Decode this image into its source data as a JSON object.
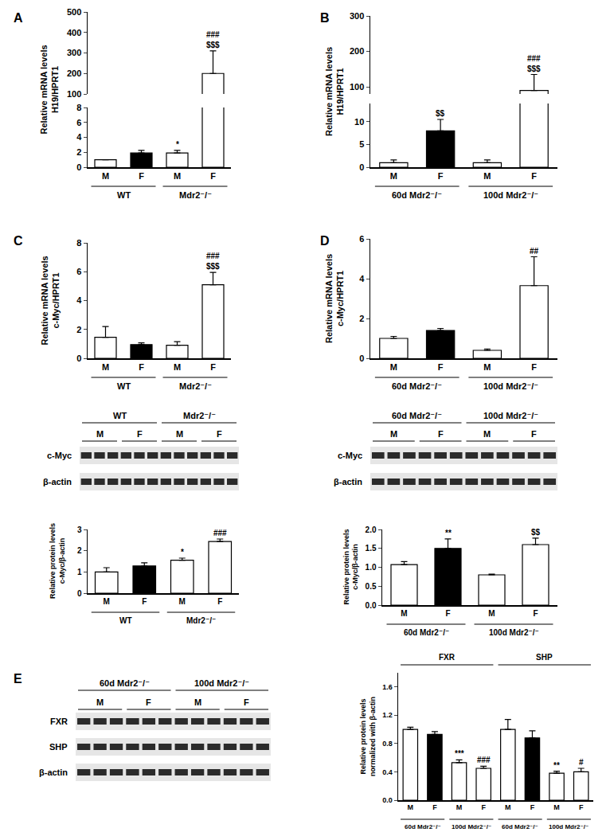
{
  "panel_labels": [
    "A",
    "B",
    "C",
    "D",
    "E"
  ],
  "chart_data": [
    {
      "type": "bar",
      "ylabel": [
        "Relative mRNA levels",
        "H19/HPRT1"
      ],
      "categories": [
        "M",
        "F",
        "M",
        "F"
      ],
      "values": [
        1,
        1.9,
        1.9,
        200
      ],
      "errors": [
        0,
        0.35,
        0.35,
        110
      ],
      "colors": [
        "#ffffff",
        "#000000",
        "#ffffff",
        "#ffffff"
      ],
      "significance": [
        null,
        null,
        [
          "*"
        ],
        [
          "###",
          "$$$"
        ]
      ],
      "groups": [
        {
          "label": "WT",
          "from": 0,
          "to": 1
        },
        {
          "label": "Mdr2⁻/⁻",
          "from": 2,
          "to": 3
        }
      ],
      "ylim": [
        [
          0,
          8
        ],
        [
          100,
          500
        ]
      ],
      "yticks": [
        [
          0,
          2,
          4,
          6,
          8
        ],
        [
          100,
          200,
          300,
          400,
          500
        ]
      ]
    },
    {
      "type": "bar",
      "ylabel": [
        "Relative mRNA levels",
        "H19/HPRT1"
      ],
      "categories": [
        "M",
        "F",
        "M",
        "F"
      ],
      "values": [
        1,
        8,
        1,
        90
      ],
      "errors": [
        0.6,
        2.5,
        0.6,
        45
      ],
      "colors": [
        "#ffffff",
        "#000000",
        "#ffffff",
        "#ffffff"
      ],
      "significance": [
        null,
        [
          "$$"
        ],
        null,
        [
          "###",
          "$$$"
        ]
      ],
      "groups": [
        {
          "label": "60d Mdr2⁻/⁻",
          "from": 0,
          "to": 1
        },
        {
          "label": "100d Mdr2⁻/⁻",
          "from": 2,
          "to": 3
        }
      ],
      "ylim": [
        [
          0,
          14
        ],
        [
          80,
          300
        ]
      ],
      "yticks": [
        [
          0,
          5,
          10
        ],
        [
          100,
          200,
          300
        ]
      ]
    },
    {
      "type": "bar",
      "ylabel": [
        "Relative mRNA levels",
        "c-Myc/HPRT1"
      ],
      "categories": [
        "M",
        "F",
        "M",
        "F"
      ],
      "values": [
        1.45,
        0.95,
        0.9,
        5.1
      ],
      "errors": [
        0.75,
        0.12,
        0.25,
        0.85
      ],
      "colors": [
        "#ffffff",
        "#000000",
        "#ffffff",
        "#ffffff"
      ],
      "significance": [
        null,
        null,
        null,
        [
          "###",
          "$$$"
        ]
      ],
      "groups": [
        {
          "label": "WT",
          "from": 0,
          "to": 1
        },
        {
          "label": "Mdr2⁻/⁻",
          "from": 2,
          "to": 3
        }
      ],
      "ylim": [
        0,
        8
      ],
      "yticks": [
        0,
        2,
        4,
        6,
        8
      ]
    },
    {
      "type": "bar",
      "ylabel": [
        "Relative mRNA levels",
        "c-Myc/HPRT1"
      ],
      "categories": [
        "M",
        "F",
        "M",
        "F"
      ],
      "values": [
        1.0,
        1.4,
        0.4,
        3.65
      ],
      "errors": [
        0.1,
        0.1,
        0.07,
        1.45
      ],
      "colors": [
        "#ffffff",
        "#000000",
        "#ffffff",
        "#ffffff"
      ],
      "significance": [
        null,
        null,
        null,
        [
          "##"
        ]
      ],
      "groups": [
        {
          "label": "60d Mdr2⁻/⁻",
          "from": 0,
          "to": 1
        },
        {
          "label": "100d Mdr2⁻/⁻",
          "from": 2,
          "to": 3
        }
      ],
      "ylim": [
        0,
        6
      ],
      "yticks": [
        0,
        2,
        4,
        6
      ]
    },
    {
      "type": "bar",
      "ylabel": [
        "Relative protein levels",
        "c-Myc/β-actin"
      ],
      "categories": [
        "M",
        "F",
        "M",
        "F"
      ],
      "values": [
        1.0,
        1.28,
        1.55,
        2.43
      ],
      "errors": [
        0.2,
        0.15,
        0.1,
        0.12
      ],
      "colors": [
        "#ffffff",
        "#000000",
        "#ffffff",
        "#ffffff"
      ],
      "significance": [
        null,
        null,
        [
          "*"
        ],
        [
          "###"
        ]
      ],
      "groups": [
        {
          "label": "WT",
          "from": 0,
          "to": 1
        },
        {
          "label": "Mdr2⁻/⁻",
          "from": 2,
          "to": 3
        }
      ],
      "ylim": [
        0,
        3
      ],
      "yticks": [
        0,
        1,
        2,
        3
      ]
    },
    {
      "type": "bar",
      "ylabel": [
        "Relative protein levels",
        "c-Myc/β-actin"
      ],
      "categories": [
        "M",
        "F",
        "M",
        "F"
      ],
      "values": [
        1.07,
        1.5,
        0.8,
        1.6
      ],
      "errors": [
        0.08,
        0.25,
        0.02,
        0.17
      ],
      "colors": [
        "#ffffff",
        "#000000",
        "#ffffff",
        "#ffffff"
      ],
      "significance": [
        null,
        [
          "**"
        ],
        null,
        [
          "$$"
        ]
      ],
      "groups": [
        {
          "label": "60d Mdr2⁻/⁻",
          "from": 0,
          "to": 1
        },
        {
          "label": "100d Mdr2⁻/⁻",
          "from": 2,
          "to": 3
        }
      ],
      "ylim": [
        0,
        2
      ],
      "yticks": [
        {
          "value": 0,
          "label": "0.0"
        },
        {
          "value": 0.5,
          "label": "0.5"
        },
        {
          "value": 1,
          "label": "1.0"
        },
        {
          "value": 1.5,
          "label": "1.5"
        },
        {
          "value": 2,
          "label": "2.0"
        }
      ]
    },
    {
      "type": "bar",
      "ylabel": [
        "Relative protein levels",
        "normalized with β-actin"
      ],
      "categories": [
        "M",
        "F",
        "M",
        "F",
        "M",
        "F",
        "M",
        "F"
      ],
      "values": [
        1.0,
        0.93,
        0.53,
        0.45,
        1.0,
        0.88,
        0.38,
        0.4
      ],
      "errors": [
        0.03,
        0.04,
        0.04,
        0.03,
        0.14,
        0.1,
        0.03,
        0.05
      ],
      "colors": [
        "#ffffff",
        "#000000",
        "#ffffff",
        "#ffffff",
        "#ffffff",
        "#000000",
        "#ffffff",
        "#ffffff"
      ],
      "significance": [
        null,
        null,
        [
          "***"
        ],
        [
          "###"
        ],
        null,
        null,
        [
          "**"
        ],
        [
          "#"
        ]
      ],
      "groups": [
        {
          "label": "60d Mdr2⁻/⁻",
          "from": 0,
          "to": 1
        },
        {
          "label": "100d Mdr2⁻/⁻",
          "from": 2,
          "to": 3
        },
        {
          "label": "60d Mdr2⁻/⁻",
          "from": 4,
          "to": 5
        },
        {
          "label": "100d Mdr2⁻/⁻",
          "from": 6,
          "to": 7
        }
      ],
      "top_groups": [
        {
          "label": "FXR",
          "from": 0,
          "to": 3
        },
        {
          "label": "SHP",
          "from": 4,
          "to": 7
        }
      ],
      "ylim": [
        0,
        1.8
      ],
      "yticks": [
        {
          "value": 0,
          "label": "0.0"
        },
        {
          "value": 0.4,
          "label": "0.4"
        },
        {
          "value": 0.8,
          "label": "0.8"
        },
        {
          "value": 1.2,
          "label": "1.2"
        },
        {
          "value": 1.6,
          "label": "1.6"
        }
      ]
    }
  ],
  "blots": [
    {
      "groups": [
        {
          "label": "WT",
          "lanes": 6
        },
        {
          "label": "Mdr2⁻/⁻",
          "lanes": 6
        }
      ],
      "lane_groups": [
        {
          "label": "M",
          "lanes": 3
        },
        {
          "label": "F",
          "lanes": 3
        },
        {
          "label": "M",
          "lanes": 3
        },
        {
          "label": "F",
          "lanes": 3
        }
      ],
      "rows": [
        "c-Myc",
        "β-actin"
      ]
    },
    {
      "groups": [
        {
          "label": "60d Mdr2⁻/⁻",
          "lanes": 6
        },
        {
          "label": "100d Mdr2⁻/⁻",
          "lanes": 6
        }
      ],
      "lane_groups": [
        {
          "label": "M",
          "lanes": 3
        },
        {
          "label": "F",
          "lanes": 3
        },
        {
          "label": "M",
          "lanes": 3
        },
        {
          "label": "F",
          "lanes": 3
        }
      ],
      "rows": [
        "c-Myc",
        "β-actin"
      ]
    },
    {
      "groups": [
        {
          "label": "60d Mdr2⁻/⁻",
          "lanes": 6
        },
        {
          "label": "100d Mdr2⁻/⁻",
          "lanes": 6
        }
      ],
      "lane_groups": [
        {
          "label": "M",
          "lanes": 3
        },
        {
          "label": "F",
          "lanes": 3
        },
        {
          "label": "M",
          "lanes": 3
        },
        {
          "label": "F",
          "lanes": 3
        }
      ],
      "rows": [
        "FXR",
        "SHP",
        "β-actin"
      ]
    }
  ]
}
